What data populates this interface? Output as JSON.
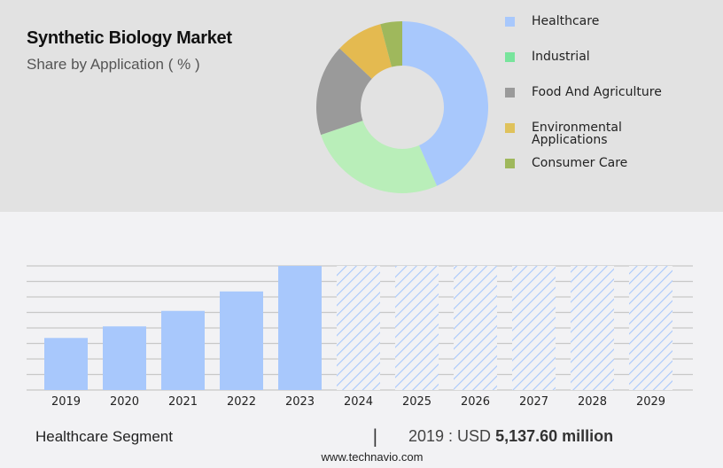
{
  "header": {
    "title": "Synthetic Biology Market",
    "subtitle": "Share by Application ( % )"
  },
  "legend": {
    "items": [
      {
        "label": "Healthcare",
        "color": "#a8c8fc"
      },
      {
        "label": "Industrial",
        "color": "#78e49c"
      },
      {
        "label": "Food And Agriculture",
        "color": "#9a9a9a"
      },
      {
        "label": "Environmental\nApplications",
        "color": "#dfc25c"
      },
      {
        "label": "Consumer Care",
        "color": "#9fb85c"
      }
    ]
  },
  "footer": {
    "segment": "Healthcare Segment",
    "separator": "|",
    "value_prefix": "2019 : USD ",
    "value_bold": "5,137.60 million",
    "url": "www.technavio.com"
  },
  "chart_data": [
    {
      "type": "pie",
      "title": "Synthetic Biology Market",
      "subtitle": "Share by Application ( % )",
      "donut": true,
      "categories": [
        "Healthcare",
        "Industrial",
        "Food And Agriculture",
        "Environmental Applications",
        "Consumer Care"
      ],
      "values": [
        43.4,
        26.4,
        17.2,
        8.9,
        4.1
      ],
      "colors": [
        "#a8c8fc",
        "#b9eeb9",
        "#9a9a9a",
        "#e4ba50",
        "#9fb85c"
      ],
      "legend_position": "right"
    },
    {
      "type": "bar",
      "title": "Healthcare Segment",
      "categories": [
        "2019",
        "2020",
        "2021",
        "2022",
        "2023",
        "2024",
        "2025",
        "2026",
        "2027",
        "2028",
        "2029"
      ],
      "values": [
        5137.6,
        6280,
        7810,
        9730,
        12250,
        null,
        null,
        null,
        null,
        null,
        null
      ],
      "forecast_categories": [
        "2024",
        "2025",
        "2026",
        "2027",
        "2028",
        "2029"
      ],
      "forecast_style": "hatched, full height (values not shown)",
      "annotation": "2019 : USD 5,137.60 million",
      "xlabel": "",
      "ylabel": "",
      "grid": true,
      "bar_color": "#a8c8fc"
    }
  ]
}
